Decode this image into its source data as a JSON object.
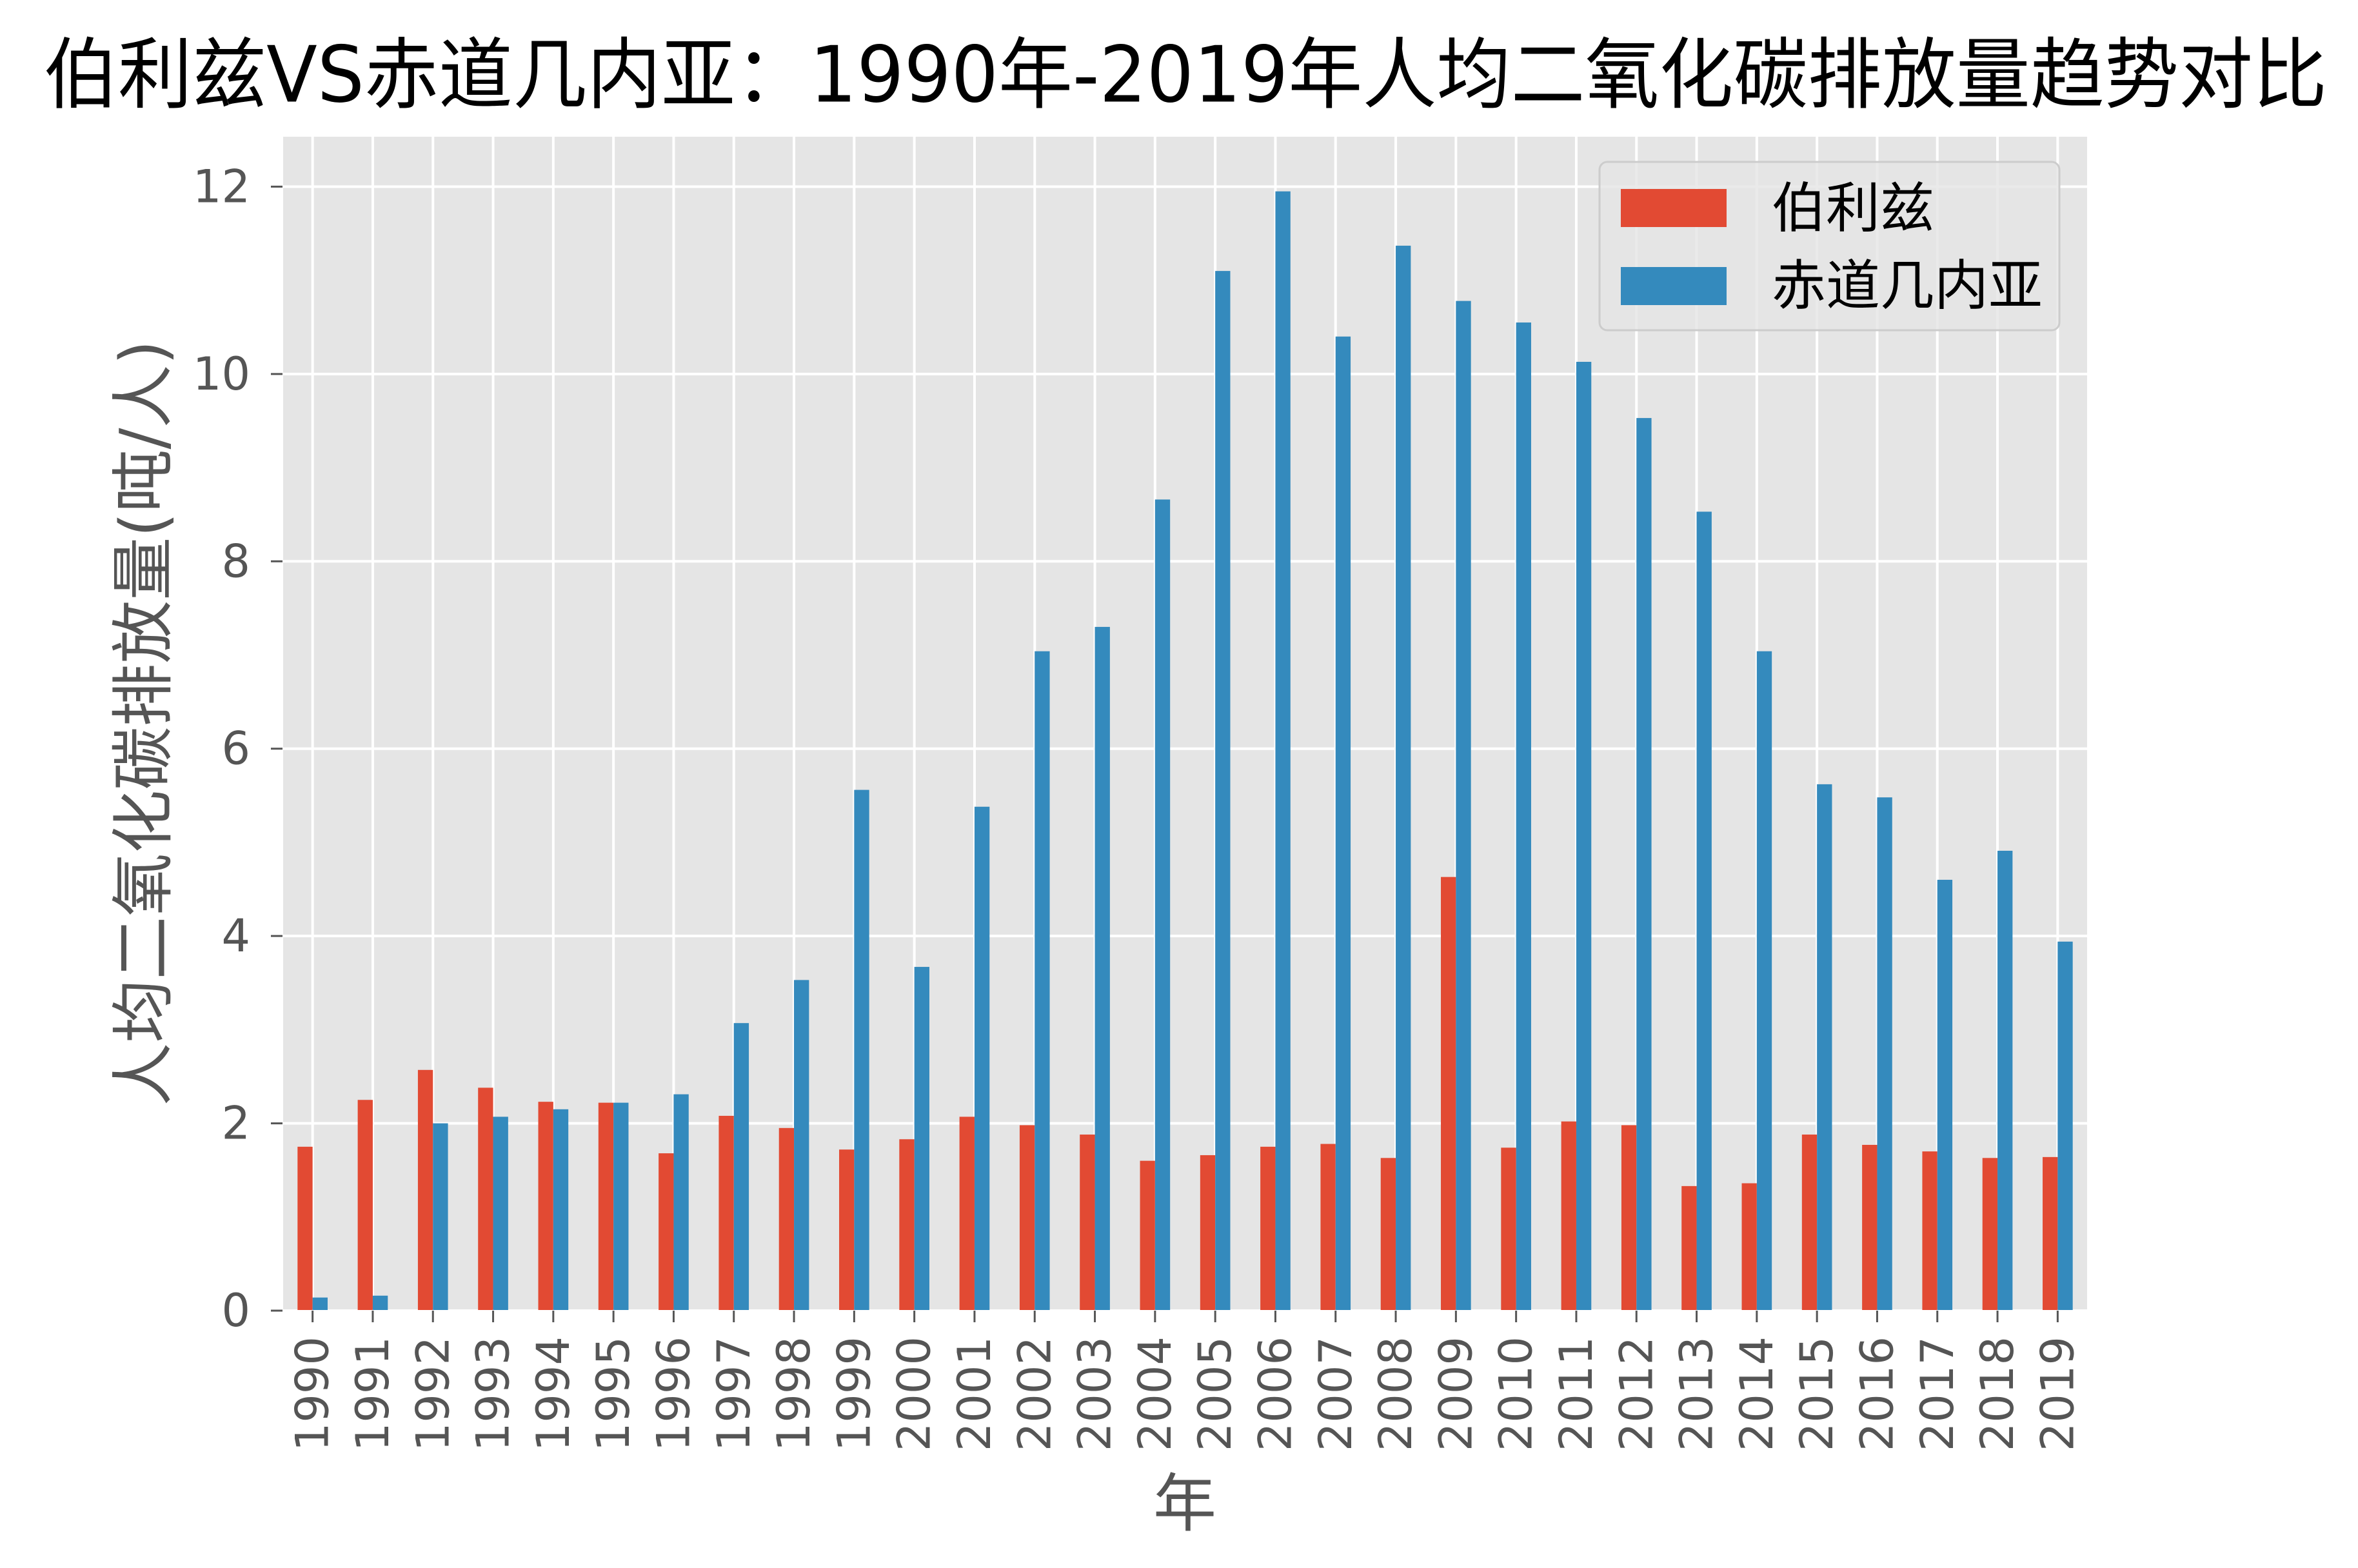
{
  "chart_data": {
    "type": "bar",
    "title": "伯利兹VS赤道几内亚：1990年-2019年人均二氧化碳排放量趋势对比",
    "xlabel": "年",
    "ylabel": "人均二氧化碳排放量(吨/人)",
    "categories": [
      "1990",
      "1991",
      "1992",
      "1993",
      "1994",
      "1995",
      "1996",
      "1997",
      "1998",
      "1999",
      "2000",
      "2001",
      "2002",
      "2003",
      "2004",
      "2005",
      "2006",
      "2007",
      "2008",
      "2009",
      "2010",
      "2011",
      "2012",
      "2013",
      "2014",
      "2015",
      "2016",
      "2017",
      "2018",
      "2019"
    ],
    "series": [
      {
        "name": "伯利兹",
        "color": "#E24A33",
        "values": [
          1.75,
          2.25,
          2.57,
          2.38,
          2.23,
          2.22,
          1.68,
          2.08,
          1.95,
          1.72,
          1.83,
          2.07,
          1.98,
          1.88,
          1.6,
          1.66,
          1.75,
          1.78,
          1.63,
          4.63,
          1.74,
          2.02,
          1.98,
          1.33,
          1.36,
          1.88,
          1.77,
          1.7,
          1.63,
          1.64
        ]
      },
      {
        "name": "赤道几内亚",
        "color": "#348ABD",
        "values": [
          0.14,
          0.16,
          2.0,
          2.07,
          2.15,
          2.22,
          2.31,
          3.07,
          3.53,
          5.56,
          3.67,
          5.38,
          7.04,
          7.3,
          8.66,
          11.1,
          11.95,
          10.4,
          11.37,
          10.78,
          10.55,
          10.13,
          9.53,
          8.53,
          7.04,
          5.62,
          5.48,
          4.6,
          4.91,
          3.94
        ]
      }
    ],
    "ylim": [
      0,
      12.54
    ],
    "yticks": [
      0,
      2,
      4,
      6,
      8,
      10,
      12
    ],
    "grid": true,
    "legend": "top-right",
    "colors": {
      "plot_background": "#E5E5E5",
      "grid": "#FFFFFF",
      "tick": "#555555",
      "legend_frame": "#CCCCCC"
    }
  }
}
